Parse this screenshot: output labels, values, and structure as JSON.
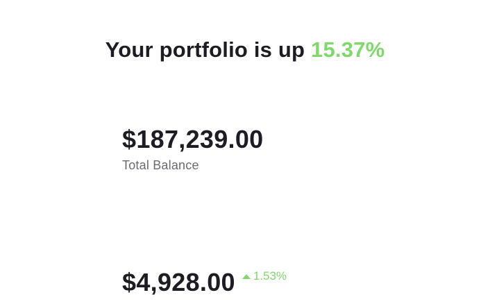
{
  "headline": {
    "prefix": "Your portfolio is up ",
    "percent": "15.37%"
  },
  "balance": {
    "amount": "$187,239.00",
    "label": "Total Balance"
  },
  "holding": {
    "amount": "$4,928.00",
    "change": "1.53%",
    "change_icon": "triangle-up-icon"
  },
  "colors": {
    "positive": "#7ed96a",
    "text_primary": "#1c1c22",
    "text_secondary": "#6a6a72"
  }
}
